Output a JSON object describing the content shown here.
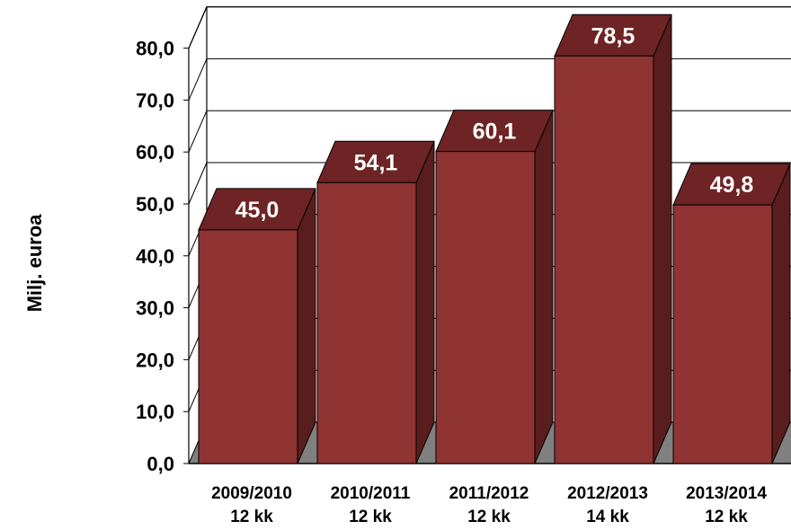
{
  "chart_data": {
    "type": "bar",
    "ylabel": "Milj. euroa",
    "categories": [
      [
        "2009/2010",
        "12 kk"
      ],
      [
        "2010/2011",
        "12 kk"
      ],
      [
        "2011/2012",
        "12 kk"
      ],
      [
        "2012/2013",
        "14 kk"
      ],
      [
        "2013/2014",
        "12 kk"
      ]
    ],
    "values": [
      45.0,
      54.1,
      60.1,
      78.5,
      49.8
    ],
    "value_labels": [
      "45,0",
      "54,1",
      "60,1",
      "78,5",
      "49,8"
    ],
    "yticks": [
      "0,0",
      "10,0",
      "20,0",
      "30,0",
      "40,0",
      "50,0",
      "60,0",
      "70,0",
      "80,0"
    ],
    "ylim": [
      0,
      80
    ],
    "grid": true,
    "style": "3d",
    "colors": {
      "bar_front": "#8f3333",
      "bar_side": "#5a1d1d",
      "bar_top": "#6e2424",
      "floor": "#808080",
      "grid": "#000000"
    }
  }
}
